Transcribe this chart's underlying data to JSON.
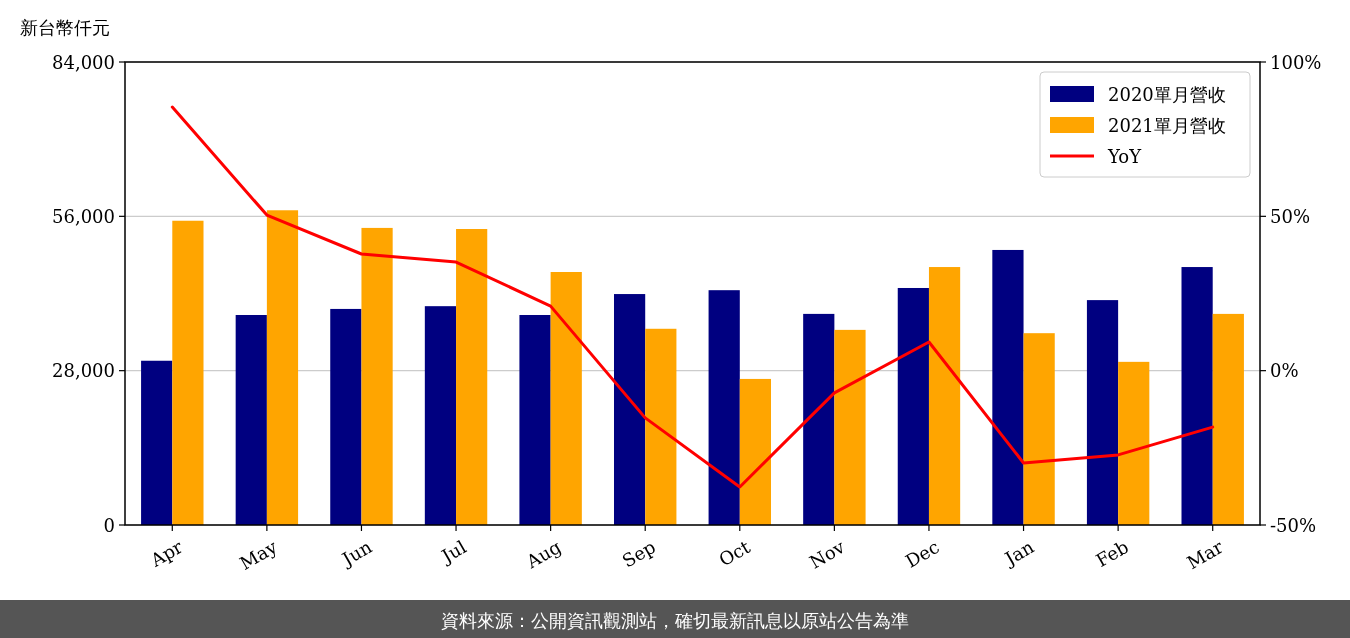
{
  "chart_data": {
    "type": "bar",
    "ylabel": "新台幣仟元",
    "categories": [
      "Apr",
      "May",
      "Jun",
      "Jul",
      "Aug",
      "Sep",
      "Oct",
      "Nov",
      "Dec",
      "Jan",
      "Feb",
      "Mar"
    ],
    "series": [
      {
        "name": "2020單月營收",
        "color": "#000080",
        "values": [
          29800,
          38100,
          39200,
          39700,
          38100,
          41900,
          42600,
          38300,
          43000,
          49900,
          40800,
          46800
        ]
      },
      {
        "name": "2021單月營收",
        "color": "#ffa500",
        "values": [
          55200,
          57100,
          53900,
          53700,
          45900,
          35600,
          26500,
          35400,
          46800,
          34800,
          29600,
          38300
        ]
      },
      {
        "name": "YoY",
        "type": "line",
        "axis": "y2",
        "color": "#ff0000",
        "values": [
          85.4,
          50.4,
          37.8,
          35.2,
          20.9,
          -15.3,
          -37.7,
          -7.2,
          9.3,
          -29.9,
          -27.3,
          -18.3
        ]
      }
    ],
    "ylim": [
      0,
      84000
    ],
    "yticks": [
      {
        "value": 0,
        "label": "0"
      },
      {
        "value": 28000,
        "label": "28,000"
      },
      {
        "value": 56000,
        "label": "56,000"
      },
      {
        "value": 84000,
        "label": "84,000"
      }
    ],
    "y2lim": [
      -50,
      100
    ],
    "y2ticks": [
      {
        "value": -50,
        "label": "-50%"
      },
      {
        "value": 0,
        "label": "0%"
      },
      {
        "value": 50,
        "label": "50%"
      },
      {
        "value": 100,
        "label": "100%"
      }
    ],
    "grid": "y",
    "legend": "top right",
    "annotations": [
      "資料來源：公開資訊觀測站，確切最新訊息以原站公告為準"
    ]
  }
}
